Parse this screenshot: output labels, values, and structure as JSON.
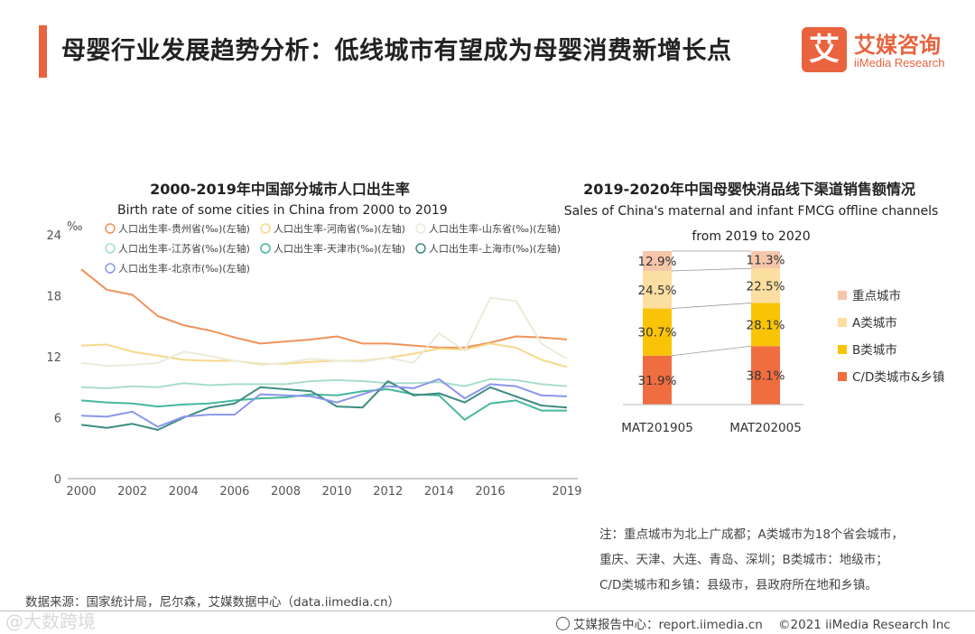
{
  "header": {
    "title": "母婴行业发展趋势分析：低线城市有望成为母婴消费新增长点",
    "logo_cn": "艾媒咨询",
    "logo_en": "iiMedia Research",
    "logo_mark": "艾"
  },
  "colors": {
    "accent": "#e8633e"
  },
  "chart_data": [
    {
      "type": "line",
      "title": "2000-2019年中国部分城市人口出生率",
      "subtitle": "Birth rate of some cities in China from 2000 to 2019",
      "ylabel": "‰",
      "ylim": [
        0,
        24
      ],
      "yticks": [
        0,
        6,
        12,
        18,
        24
      ],
      "xticks": [
        2000,
        2002,
        2004,
        2006,
        2008,
        2010,
        2012,
        2014,
        2016,
        2019
      ],
      "x": [
        2000,
        2001,
        2002,
        2003,
        2004,
        2005,
        2006,
        2007,
        2008,
        2009,
        2010,
        2011,
        2012,
        2013,
        2014,
        2015,
        2016,
        2017,
        2018,
        2019
      ],
      "series": [
        {
          "name": "人口出生率-贵州省(‰)(左轴)",
          "color": "#f0925a",
          "values": [
            20.6,
            18.6,
            18.1,
            16.0,
            15.1,
            14.6,
            13.9,
            13.3,
            13.5,
            13.7,
            14.0,
            13.3,
            13.3,
            13.1,
            12.9,
            12.9,
            13.4,
            14.0,
            13.9,
            13.7
          ]
        },
        {
          "name": "人口出生率-河南省(‰)(左轴)",
          "color": "#f5d98a",
          "values": [
            13.1,
            13.2,
            12.5,
            12.1,
            11.7,
            11.6,
            11.6,
            11.3,
            11.3,
            11.5,
            11.6,
            11.6,
            11.9,
            12.3,
            12.8,
            12.7,
            13.3,
            12.9,
            11.7,
            11.0
          ]
        },
        {
          "name": "人口出生率-山东省(‰)(左轴)",
          "color": "#ebebd9",
          "values": [
            11.4,
            11.1,
            11.2,
            11.4,
            12.5,
            12.1,
            11.6,
            11.2,
            11.4,
            11.8,
            11.6,
            11.5,
            11.9,
            11.4,
            14.3,
            12.6,
            17.8,
            17.5,
            13.3,
            11.8
          ]
        },
        {
          "name": "人口出生率-江苏省(‰)(左轴)",
          "color": "#a8ddc8",
          "values": [
            9.0,
            8.9,
            9.1,
            9.0,
            9.4,
            9.2,
            9.3,
            9.3,
            9.3,
            9.6,
            9.7,
            9.6,
            9.4,
            9.4,
            9.5,
            9.1,
            9.8,
            9.7,
            9.3,
            9.1
          ]
        },
        {
          "name": "人口出生率-天津市(‰)(左轴)",
          "color": "#44b89c",
          "values": [
            7.7,
            7.5,
            7.4,
            7.1,
            7.3,
            7.4,
            7.7,
            7.9,
            8.0,
            8.3,
            8.2,
            8.6,
            8.8,
            8.3,
            8.2,
            5.8,
            7.4,
            7.7,
            6.7,
            6.7
          ]
        },
        {
          "name": "人口出生率-上海市(‰)(左轴)",
          "color": "#3c8c82",
          "values": [
            5.3,
            5.0,
            5.4,
            4.8,
            6.0,
            7.0,
            7.4,
            9.0,
            8.8,
            8.6,
            7.1,
            7.0,
            9.6,
            8.2,
            8.4,
            7.5,
            9.0,
            8.1,
            7.2,
            7.0
          ]
        },
        {
          "name": "人口出生率-北京市(‰)(左轴)",
          "color": "#8a96ea",
          "values": [
            6.2,
            6.1,
            6.6,
            5.1,
            6.1,
            6.3,
            6.3,
            8.3,
            8.2,
            8.1,
            7.5,
            8.3,
            9.1,
            8.9,
            9.8,
            7.9,
            9.3,
            9.1,
            8.2,
            8.1
          ]
        }
      ]
    },
    {
      "type": "bar",
      "stacked": true,
      "title": "2019-2020年中国母婴快消品线下渠道销售额情况",
      "subtitle_line1": "Sales of China's maternal and infant FMCG offline channels",
      "subtitle_line2": "from 2019 to 2020",
      "categories": [
        "MAT201905",
        "MAT202005"
      ],
      "series": [
        {
          "name": "C/D类城市&乡镇",
          "color": "#f06d3f",
          "values": [
            31.9,
            38.1
          ],
          "labels": [
            "31.9%",
            "38.1%"
          ]
        },
        {
          "name": "B类城市",
          "color": "#f9c406",
          "values": [
            30.7,
            28.1
          ],
          "labels": [
            "30.7%",
            "28.1%"
          ]
        },
        {
          "name": "A类城市",
          "color": "#fbdea0",
          "values": [
            24.5,
            22.5
          ],
          "labels": [
            "24.5%",
            "22.5%"
          ]
        },
        {
          "name": "重点城市",
          "color": "#f6c6ab",
          "values": [
            12.9,
            11.3
          ],
          "labels": [
            "12.9%",
            "11.3%"
          ]
        }
      ],
      "legend_order": [
        "重点城市",
        "A类城市",
        "B类城市",
        "C/D类城市&乡镇"
      ]
    }
  ],
  "note": {
    "lines": [
      "注：重点城市为北上广成都；A类城市为18个省会城市，",
      "重庆、天津、大连、青岛、深圳；B类城市：地级市；",
      "C/D类城市和乡镇：县级市，县政府所在地和乡镇。"
    ]
  },
  "source": "数据来源：国家统计局，尼尔森，艾媒数据中心（data.iimedia.cn）",
  "watermark": "@大数跨境",
  "footer": {
    "report_center": "艾媒报告中心：report.iimedia.cn",
    "copyright": "©2021  iiMedia Research  Inc"
  }
}
